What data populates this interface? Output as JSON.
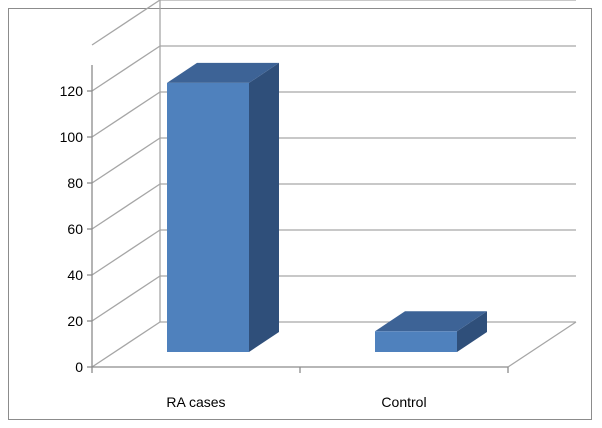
{
  "chart_data": {
    "type": "bar",
    "style": "3d-column",
    "categories": [
      "RA cases",
      "Control"
    ],
    "values": [
      117,
      9
    ],
    "ylim": [
      0,
      140
    ],
    "yticks": [
      0,
      20,
      40,
      60,
      80,
      100,
      120
    ],
    "title": "",
    "xlabel": "",
    "ylabel": "",
    "grid": true,
    "legend": "none",
    "colors": {
      "bar_front": "#4f81bd",
      "bar_side": "#2f4f7a",
      "bar_top": "#3d6396",
      "grid": "#a6a6a6",
      "axis": "#8c8c8c"
    }
  }
}
